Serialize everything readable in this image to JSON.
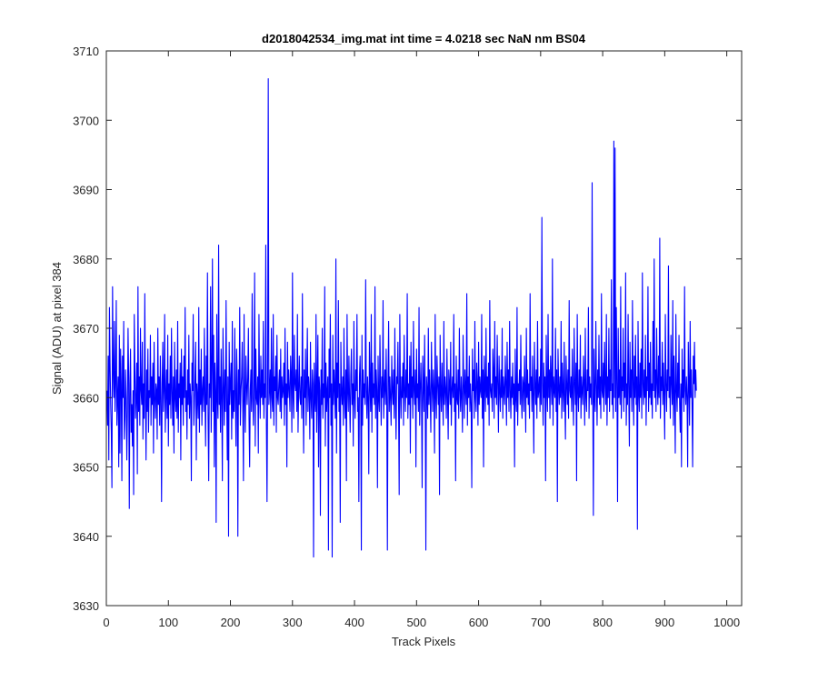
{
  "chart_data": {
    "type": "line",
    "title": "d2018042534_img.mat int time = 4.0218 sec  NaN nm BS04",
    "xlabel": "Track Pixels",
    "ylabel": "Signal (ADU) at pixel 384",
    "xlim": [
      0,
      1024
    ],
    "ylim": [
      3630,
      3710
    ],
    "xticks": [
      0,
      100,
      200,
      300,
      400,
      500,
      600,
      700,
      800,
      900,
      1000
    ],
    "yticks": [
      3630,
      3640,
      3650,
      3660,
      3670,
      3680,
      3690,
      3700,
      3710
    ],
    "grid": false,
    "series": [
      {
        "color": "#0000ff",
        "x_start": 1,
        "x_step": 1,
        "values": [
          3661,
          3656,
          3666,
          3651,
          3673,
          3665,
          3659,
          3655,
          3647,
          3676,
          3664,
          3660,
          3671,
          3658,
          3662,
          3674,
          3656,
          3660,
          3663,
          3650,
          3669,
          3652,
          3667,
          3662,
          3648,
          3666,
          3660,
          3671,
          3654,
          3657,
          3664,
          3660,
          3651,
          3658,
          3670,
          3663,
          3644,
          3662,
          3667,
          3655,
          3659,
          3653,
          3661,
          3646,
          3672,
          3664,
          3657,
          3660,
          3665,
          3649,
          3676,
          3658,
          3663,
          3656,
          3670,
          3661,
          3659,
          3668,
          3654,
          3662,
          3657,
          3675,
          3660,
          3651,
          3664,
          3658,
          3667,
          3655,
          3661,
          3660,
          3669,
          3656,
          3663,
          3659,
          3665,
          3652,
          3668,
          3660,
          3657,
          3662,
          3661,
          3654,
          3670,
          3659,
          3663,
          3656,
          3666,
          3660,
          3645,
          3662,
          3668,
          3658,
          3661,
          3672,
          3655,
          3660,
          3664,
          3657,
          3669,
          3653,
          3662,
          3659,
          3666,
          3657,
          3670,
          3661,
          3656,
          3663,
          3652,
          3668,
          3660,
          3658,
          3664,
          3657,
          3671,
          3655,
          3662,
          3660,
          3665,
          3651,
          3667,
          3659,
          3663,
          3656,
          3666,
          3660,
          3673,
          3658,
          3661,
          3654,
          3664,
          3659,
          3669,
          3657,
          3662,
          3660,
          3648,
          3665,
          3661,
          3672,
          3656,
          3659,
          3663,
          3668,
          3651,
          3662,
          3660,
          3657,
          3673,
          3655,
          3664,
          3659,
          3667,
          3656,
          3661,
          3663,
          3658,
          3670,
          3660,
          3653,
          3666,
          3659,
          3678,
          3657,
          3648,
          3662,
          3660,
          3676,
          3655,
          3664,
          3680,
          3658,
          3669,
          3650,
          3665,
          3661,
          3642,
          3672,
          3660,
          3657,
          3682,
          3659,
          3663,
          3655,
          3667,
          3660,
          3648,
          3670,
          3662,
          3656,
          3664,
          3658,
          3674,
          3660,
          3651,
          3663,
          3640,
          3668,
          3659,
          3662,
          3665,
          3654,
          3671,
          3657,
          3661,
          3658,
          3670,
          3660,
          3653,
          3667,
          3662,
          3640,
          3664,
          3659,
          3673,
          3656,
          3661,
          3663,
          3668,
          3658,
          3648,
          3672,
          3660,
          3655,
          3666,
          3662,
          3659,
          3663,
          3670,
          3657,
          3650,
          3661,
          3664,
          3658,
          3675,
          3660,
          3656,
          3662,
          3678,
          3653,
          3667,
          3660,
          3659,
          3663,
          3652,
          3672,
          3661,
          3657,
          3666,
          3660,
          3664,
          3659,
          3671,
          3657,
          3662,
          3660,
          3682,
          3656,
          3645,
          3663,
          3706,
          3659,
          3661,
          3664,
          3657,
          3670,
          3660,
          3658,
          3672,
          3656,
          3663,
          3661,
          3666,
          3655,
          3669,
          3660,
          3659,
          3662,
          3664,
          3658,
          3667,
          3657,
          3663,
          3660,
          3661,
          3665,
          3656,
          3670,
          3659,
          3662,
          3650,
          3668,
          3660,
          3664,
          3661,
          3658,
          3666,
          3663,
          3655,
          3678,
          3660,
          3657,
          3669,
          3662,
          3661,
          3664,
          3658,
          3672,
          3655,
          3661,
          3666,
          3660,
          3659,
          3663,
          3657,
          3675,
          3661,
          3652,
          3664,
          3660,
          3667,
          3656,
          3662,
          3670,
          3658,
          3663,
          3661,
          3654,
          3668,
          3660,
          3657,
          3664,
          3662,
          3637,
          3665,
          3660,
          3658,
          3672,
          3655,
          3662,
          3669,
          3650,
          3663,
          3661,
          3643,
          3664,
          3659,
          3670,
          3657,
          3662,
          3660,
          3676,
          3653,
          3665,
          3658,
          3661,
          3663,
          3638,
          3667,
          3660,
          3672,
          3656,
          3662,
          3637,
          3669,
          3659,
          3664,
          3661,
          3657,
          3680,
          3652,
          3665,
          3660,
          3674,
          3658,
          3662,
          3642,
          3668,
          3661,
          3659,
          3663,
          3656,
          3670,
          3660,
          3657,
          3664,
          3648,
          3672,
          3661,
          3658,
          3666,
          3660,
          3655,
          3663,
          3667,
          3659,
          3662,
          3653,
          3671,
          3660,
          3657,
          3664,
          3661,
          3672,
          3658,
          3660,
          3645,
          3663,
          3666,
          3660,
          3638,
          3669,
          3656,
          3664,
          3660,
          3662,
          3659,
          3677,
          3661,
          3657,
          3663,
          3660,
          3649,
          3668,
          3662,
          3658,
          3672,
          3655,
          3665,
          3660,
          3662,
          3659,
          3676,
          3657,
          3664,
          3661,
          3647,
          3666,
          3660,
          3658,
          3669,
          3662,
          3656,
          3663,
          3660,
          3674,
          3657,
          3661,
          3664,
          3659,
          3667,
          3660,
          3638,
          3662,
          3671,
          3658,
          3663,
          3660,
          3656,
          3666,
          3661,
          3659,
          3664,
          3657,
          3670,
          3660,
          3654,
          3663,
          3662,
          3668,
          3659,
          3646,
          3672,
          3661,
          3657,
          3663,
          3660,
          3665,
          3656,
          3669,
          3661,
          3658,
          3664,
          3660,
          3675,
          3657,
          3662,
          3659,
          3666,
          3652,
          3668,
          3660,
          3663,
          3657,
          3671,
          3661,
          3659,
          3664,
          3650,
          3667,
          3660,
          3662,
          3658,
          3673,
          3656,
          3661,
          3665,
          3660,
          3647,
          3666,
          3662,
          3658,
          3669,
          3660,
          3638,
          3663,
          3661,
          3657,
          3670,
          3659,
          3664,
          3660,
          3655,
          3668,
          3662,
          3658,
          3664,
          3661,
          3652,
          3672,
          3660,
          3657,
          3666,
          3662,
          3659,
          3663,
          3646,
          3669,
          3661,
          3658,
          3665,
          3660,
          3656,
          3671,
          3659,
          3663,
          3661,
          3657,
          3667,
          3660,
          3654,
          3664,
          3662,
          3659,
          3668,
          3656,
          3661,
          3663,
          3660,
          3672,
          3658,
          3662,
          3648,
          3666,
          3660,
          3659,
          3664,
          3657,
          3670,
          3661,
          3658,
          3663,
          3660,
          3655,
          3669,
          3662,
          3657,
          3664,
          3661,
          3659,
          3675,
          3656,
          3663,
          3660,
          3666,
          3658,
          3662,
          3659,
          3647,
          3667,
          3661,
          3664,
          3657,
          3671,
          3660,
          3658,
          3665,
          3662,
          3656,
          3668,
          3659,
          3663,
          3661,
          3660,
          3672,
          3657,
          3664,
          3650,
          3666,
          3662,
          3658,
          3670,
          3660,
          3663,
          3659,
          3665,
          3656,
          3674,
          3661,
          3660,
          3662,
          3658,
          3667,
          3664,
          3657,
          3671,
          3660,
          3663,
          3659,
          3669,
          3662,
          3655,
          3666,
          3661,
          3658,
          3664,
          3660,
          3670,
          3657,
          3663,
          3661,
          3659,
          3666,
          3662,
          3656,
          3668,
          3660,
          3664,
          3658,
          3671,
          3661,
          3657,
          3663,
          3660,
          3665,
          3659,
          3662,
          3650,
          3667,
          3660,
          3658,
          3673,
          3656,
          3662,
          3661,
          3664,
          3659,
          3669,
          3660,
          3657,
          3663,
          3662,
          3658,
          3666,
          3661,
          3655,
          3670,
          3660,
          3664,
          3659,
          3662,
          3657,
          3675,
          3661,
          3663,
          3658,
          3666,
          3660,
          3652,
          3668,
          3662,
          3659,
          3664,
          3657,
          3671,
          3660,
          3661,
          3663,
          3658,
          3667,
          3659,
          3686,
          3662,
          3656,
          3665,
          3660,
          3663,
          3648,
          3669,
          3661,
          3658,
          3672,
          3660,
          3664,
          3657,
          3666,
          3662,
          3659,
          3680,
          3656,
          3663,
          3661,
          3660,
          3670,
          3658,
          3664,
          3645,
          3667,
          3662,
          3659,
          3663,
          3660,
          3671,
          3657,
          3665,
          3661,
          3658,
          3668,
          3660,
          3654,
          3666,
          3662,
          3659,
          3664,
          3657,
          3674,
          3661,
          3660,
          3663,
          3658,
          3667,
          3660,
          3656,
          3670,
          3662,
          3659,
          3665,
          3648,
          3672,
          3661,
          3658,
          3664,
          3660,
          3669,
          3657,
          3663,
          3661,
          3659,
          3666,
          3662,
          3656,
          3670,
          3660,
          3658,
          3664,
          3661,
          3673,
          3657,
          3663,
          3660,
          3662,
          3659,
          3691,
          3661,
          3643,
          3667,
          3660,
          3658,
          3671,
          3662,
          3656,
          3664,
          3660,
          3669,
          3659,
          3663,
          3657,
          3675,
          3661,
          3660,
          3665,
          3658,
          3668,
          3662,
          3659,
          3672,
          3656,
          3663,
          3660,
          3670,
          3658,
          3664,
          3661,
          3677,
          3659,
          3662,
          3657,
          3697,
          3660,
          3696,
          3658,
          3673,
          3662,
          3645,
          3670,
          3660,
          3664,
          3659,
          3676,
          3657,
          3663,
          3661,
          3670,
          3658,
          3665,
          3660,
          3678,
          3656,
          3662,
          3659,
          3672,
          3661,
          3653,
          3668,
          3660,
          3664,
          3658,
          3674,
          3662,
          3656,
          3666,
          3660,
          3669,
          3659,
          3663,
          3641,
          3671,
          3661,
          3658,
          3665,
          3660,
          3667,
          3657,
          3678,
          3662,
          3659,
          3664,
          3660,
          3669,
          3656,
          3663,
          3661,
          3676,
          3658,
          3665,
          3660,
          3668,
          3659,
          3662,
          3657,
          3671,
          3661,
          3680,
          3660,
          3664,
          3658,
          3670,
          3662,
          3659,
          3666,
          3660,
          3683,
          3657,
          3663,
          3661,
          3668,
          3659,
          3665,
          3660,
          3654,
          3672,
          3662,
          3658,
          3664,
          3661,
          3679,
          3660,
          3663,
          3657,
          3669,
          3662,
          3659,
          3674,
          3656,
          3666,
          3660,
          3652,
          3672,
          3661,
          3658,
          3665,
          3660,
          3669,
          3659,
          3655,
          3662,
          3650,
          3667,
          3660,
          3664,
          3658,
          3676,
          3661,
          3659,
          3663,
          3660,
          3650,
          3668,
          3662,
          3656,
          3671,
          3660,
          3664,
          3659,
          3650,
          3666,
          3662,
          3668,
          3660,
          3664,
          3661
        ]
      }
    ]
  }
}
